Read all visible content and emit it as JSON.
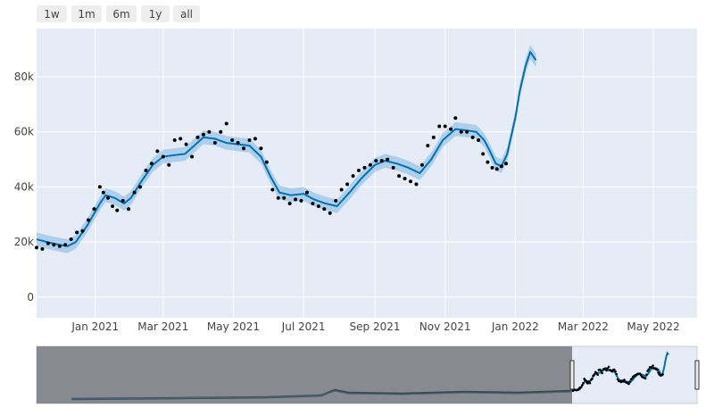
{
  "range_selector": {
    "buttons": [
      {
        "label": "1w"
      },
      {
        "label": "1m"
      },
      {
        "label": "6m"
      },
      {
        "label": "1y"
      },
      {
        "label": "all"
      }
    ]
  },
  "chart_data": {
    "type": "line",
    "title": "",
    "xlabel": "",
    "ylabel": "",
    "x_range": [
      "2020-11-11",
      "2022-06-08"
    ],
    "y_range": [
      -7500,
      97500
    ],
    "y_ticks": [
      {
        "value": 0,
        "label": "0"
      },
      {
        "value": 20000,
        "label": "20k"
      },
      {
        "value": 40000,
        "label": "40k"
      },
      {
        "value": 60000,
        "label": "60k"
      },
      {
        "value": 80000,
        "label": "80k"
      }
    ],
    "x_ticks": [
      {
        "date": "2021-01-01",
        "label": "Jan 2021"
      },
      {
        "date": "2021-03-01",
        "label": "Mar 2021"
      },
      {
        "date": "2021-05-01",
        "label": "May 2021"
      },
      {
        "date": "2021-07-01",
        "label": "Jul 2021"
      },
      {
        "date": "2021-09-01",
        "label": "Sep 2021"
      },
      {
        "date": "2021-11-01",
        "label": "Nov 2021"
      },
      {
        "date": "2022-01-01",
        "label": "Jan 2022"
      },
      {
        "date": "2022-03-01",
        "label": "Mar 2022"
      },
      {
        "date": "2022-05-01",
        "label": "May 2022"
      }
    ],
    "grid": true,
    "colors": {
      "forecast": "#0072b2",
      "band": "#7fb8e4",
      "points": "#000000",
      "plot_bg": "#e5ecf6"
    },
    "series": [
      {
        "role": "forecast",
        "x": [
          "2020-11-11",
          "2020-11-20",
          "2020-12-01",
          "2020-12-08",
          "2020-12-15",
          "2020-12-25",
          "2021-01-05",
          "2021-01-10",
          "2021-01-18",
          "2021-01-26",
          "2021-02-01",
          "2021-02-10",
          "2021-02-20",
          "2021-03-01",
          "2021-03-10",
          "2021-03-20",
          "2021-03-28",
          "2021-04-05",
          "2021-04-15",
          "2021-04-25",
          "2021-05-05",
          "2021-05-15",
          "2021-05-25",
          "2021-06-02",
          "2021-06-10",
          "2021-06-20",
          "2021-07-01",
          "2021-07-10",
          "2021-07-20",
          "2021-07-30",
          "2021-08-10",
          "2021-08-20",
          "2021-09-01",
          "2021-09-10",
          "2021-09-20",
          "2021-09-30",
          "2021-10-10",
          "2021-10-20",
          "2021-10-30",
          "2021-11-10",
          "2021-11-20",
          "2021-11-28",
          "2021-12-05",
          "2021-12-10",
          "2021-12-15",
          "2021-12-20",
          "2021-12-25",
          "2022-01-01",
          "2022-01-05",
          "2022-01-10",
          "2022-01-14",
          "2022-01-19"
        ],
        "y": [
          21000,
          20000,
          19000,
          18500,
          20000,
          26000,
          34000,
          37000,
          36000,
          34000,
          36000,
          42000,
          48000,
          51000,
          51500,
          52000,
          55000,
          58000,
          57500,
          56000,
          55500,
          55000,
          51000,
          44000,
          38000,
          37000,
          37500,
          35500,
          34000,
          33000,
          38000,
          43000,
          48000,
          49500,
          48500,
          47000,
          45000,
          50000,
          57000,
          61000,
          60500,
          60000,
          57000,
          53000,
          48500,
          47500,
          52000,
          65000,
          75000,
          84000,
          89000,
          86000
        ]
      },
      {
        "role": "actual",
        "x": [
          "2020-11-11",
          "2020-11-16",
          "2020-11-21",
          "2020-11-26",
          "2020-12-01",
          "2020-12-06",
          "2020-12-11",
          "2020-12-16",
          "2020-12-21",
          "2020-12-26",
          "2020-12-31",
          "2021-01-05",
          "2021-01-08",
          "2021-01-12",
          "2021-01-16",
          "2021-01-20",
          "2021-01-25",
          "2021-01-30",
          "2021-02-04",
          "2021-02-09",
          "2021-02-14",
          "2021-02-19",
          "2021-02-24",
          "2021-03-01",
          "2021-03-06",
          "2021-03-11",
          "2021-03-16",
          "2021-03-21",
          "2021-03-26",
          "2021-03-31",
          "2021-04-05",
          "2021-04-10",
          "2021-04-15",
          "2021-04-20",
          "2021-04-25",
          "2021-04-30",
          "2021-05-05",
          "2021-05-10",
          "2021-05-15",
          "2021-05-20",
          "2021-05-25",
          "2021-05-30",
          "2021-06-04",
          "2021-06-09",
          "2021-06-14",
          "2021-06-19",
          "2021-06-24",
          "2021-06-29",
          "2021-07-04",
          "2021-07-09",
          "2021-07-14",
          "2021-07-19",
          "2021-07-24",
          "2021-07-29",
          "2021-08-03",
          "2021-08-08",
          "2021-08-13",
          "2021-08-18",
          "2021-08-23",
          "2021-08-28",
          "2021-09-02",
          "2021-09-07",
          "2021-09-12",
          "2021-09-17",
          "2021-09-22",
          "2021-09-27",
          "2021-10-02",
          "2021-10-07",
          "2021-10-12",
          "2021-10-17",
          "2021-10-22",
          "2021-10-27",
          "2021-11-01",
          "2021-11-06",
          "2021-11-10",
          "2021-11-15",
          "2021-11-20",
          "2021-11-25",
          "2021-11-30",
          "2021-12-04",
          "2021-12-08",
          "2021-12-12",
          "2021-12-16",
          "2021-12-20",
          "2021-12-24"
        ],
        "y": [
          18000,
          17500,
          19500,
          19000,
          18500,
          19000,
          21000,
          23500,
          24000,
          28000,
          32000,
          40000,
          38000,
          36000,
          33000,
          31500,
          35000,
          32000,
          38000,
          40000,
          46000,
          48500,
          53000,
          51000,
          48000,
          57000,
          57500,
          55500,
          51000,
          58000,
          59000,
          60000,
          56000,
          60000,
          63000,
          57000,
          56000,
          54000,
          57000,
          57500,
          54000,
          49000,
          39000,
          36000,
          36000,
          34000,
          35500,
          35000,
          38000,
          34000,
          33000,
          32000,
          30500,
          35000,
          39000,
          41000,
          44000,
          46000,
          47000,
          48000,
          49500,
          49500,
          50000,
          47000,
          44000,
          43000,
          42000,
          41000,
          48000,
          55000,
          58000,
          62000,
          62000,
          61000,
          65000,
          60000,
          60000,
          58000,
          57000,
          52000,
          49000,
          47000,
          46500,
          47500,
          48500
        ]
      }
    ]
  }
}
